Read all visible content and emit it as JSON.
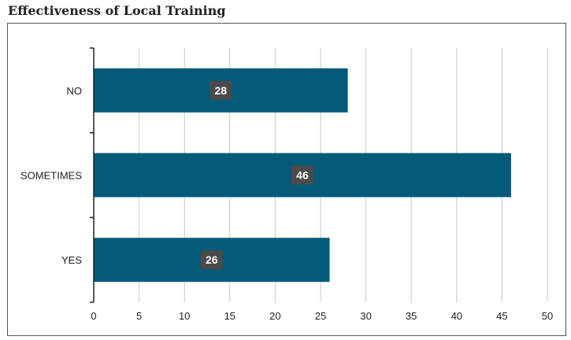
{
  "title": "Effectiveness of Local Training",
  "colors": {
    "bar": "#045a79",
    "label_bg": "#4a4a4a",
    "grid": "#c8c8c8",
    "axis": "#222222"
  },
  "chart_data": {
    "type": "bar",
    "orientation": "horizontal",
    "title": "Effectiveness of Local Training",
    "categories": [
      "NO",
      "SOMETIMES",
      "YES"
    ],
    "values": [
      28,
      46,
      26
    ],
    "xlim": [
      0,
      50
    ],
    "xticks": [
      0,
      5,
      10,
      15,
      20,
      25,
      30,
      35,
      40,
      45,
      50
    ],
    "grid": true,
    "data_labels": true
  }
}
